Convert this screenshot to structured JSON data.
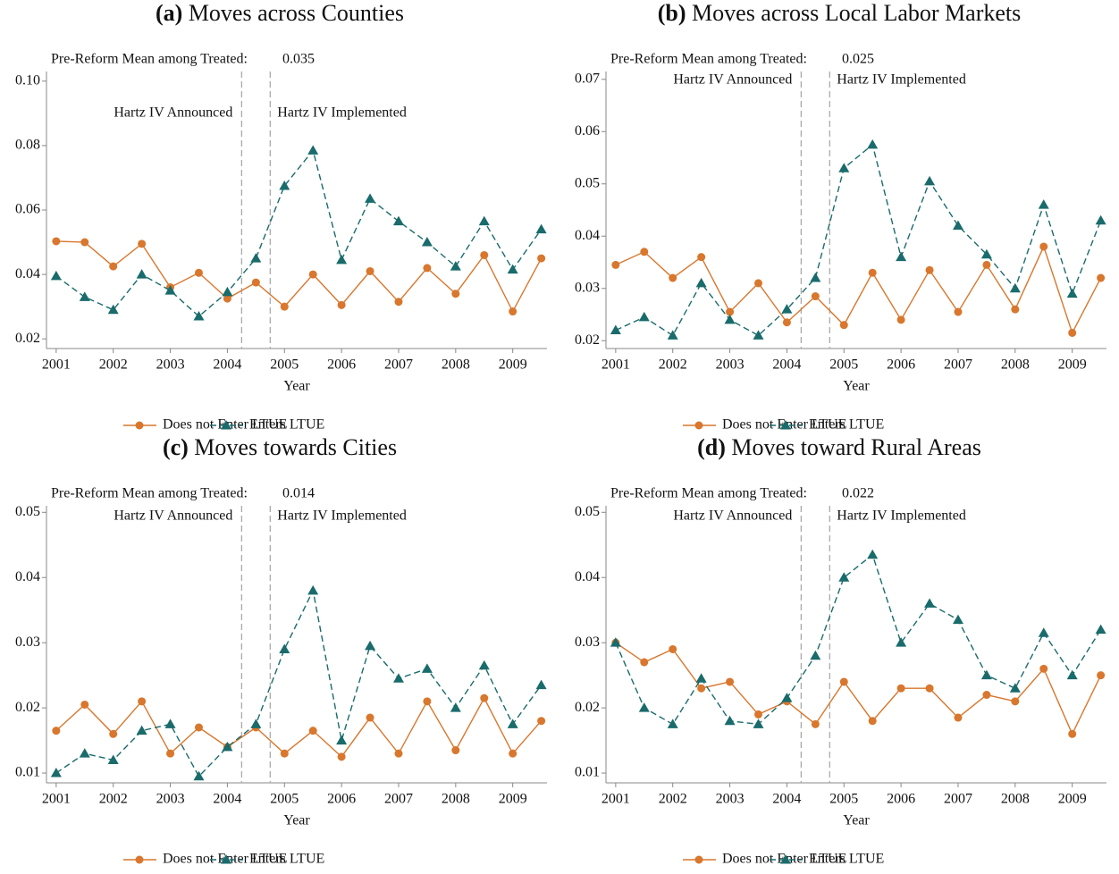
{
  "chart_data": [
    {
      "type": "line",
      "label": "(a)",
      "title": "Moves across Counties",
      "annotation_text": "Pre-Reform Mean among Treated:",
      "annotation_value": 0.035,
      "xlabel": "Year",
      "x": [
        2001,
        2001.5,
        2002,
        2002.5,
        2003,
        2003.5,
        2004,
        2004.5,
        2005,
        2005.5,
        2006,
        2006.5,
        2007,
        2007.5,
        2008,
        2008.5,
        2009,
        2009.5
      ],
      "xlim": [
        2000.83,
        2009.6
      ],
      "xticks": [
        2001,
        2002,
        2003,
        2004,
        2005,
        2006,
        2007,
        2008,
        2009
      ],
      "ylim": [
        0.017,
        0.103
      ],
      "yticks": [
        0.02,
        0.04,
        0.06,
        0.08,
        {
          "value": 0.1,
          "label": "0.10"
        }
      ],
      "vlines": [
        2004.25,
        2004.75
      ],
      "vline_labels": [
        "Hartz IV Announced",
        "Hartz IV Implemented"
      ],
      "series": [
        {
          "name": "Does not Enter LTUE",
          "color": "#d8772d",
          "values": [
            0.0503,
            0.05,
            0.0425,
            0.0495,
            0.036,
            0.0405,
            0.0325,
            0.0375,
            0.03,
            0.04,
            0.0305,
            0.041,
            0.0315,
            0.042,
            0.034,
            0.046,
            0.0285,
            0.045
          ]
        },
        {
          "name": "Enters LTUE",
          "color": "#1a6b6b",
          "values": [
            0.0395,
            0.033,
            0.029,
            0.04,
            0.035,
            0.027,
            0.0345,
            0.045,
            0.0675,
            0.0785,
            0.0445,
            0.0635,
            0.0565,
            0.05,
            0.0425,
            0.0565,
            0.0415,
            0.054
          ]
        }
      ]
    },
    {
      "type": "line",
      "label": "(b)",
      "title": "Moves across Local Labor Markets",
      "annotation_text": "Pre-Reform Mean among Treated:",
      "annotation_value": 0.025,
      "xlabel": "Year",
      "x": [
        2001,
        2001.5,
        2002,
        2002.5,
        2003,
        2003.5,
        2004,
        2004.5,
        2005,
        2005.5,
        2006,
        2006.5,
        2007,
        2007.5,
        2008,
        2008.5,
        2009,
        2009.5
      ],
      "xlim": [
        2000.83,
        2009.6
      ],
      "xticks": [
        2001,
        2002,
        2003,
        2004,
        2005,
        2006,
        2007,
        2008,
        2009
      ],
      "ylim": [
        0.0185,
        0.0715
      ],
      "yticks": [
        0.02,
        0.03,
        0.04,
        0.05,
        0.06,
        0.07
      ],
      "vlines": [
        2004.25,
        2004.75
      ],
      "vline_labels": [
        "Hartz IV Announced",
        "Hartz IV Implemented"
      ],
      "series": [
        {
          "name": "Does not Enter LTUE",
          "color": "#d8772d",
          "values": [
            0.0345,
            0.037,
            0.032,
            0.036,
            0.0255,
            0.031,
            0.0235,
            0.0285,
            0.023,
            0.033,
            0.024,
            0.0335,
            0.0255,
            0.0345,
            0.026,
            0.038,
            0.0215,
            0.032
          ]
        },
        {
          "name": "Enters LTUE",
          "color": "#1a6b6b",
          "values": [
            0.022,
            0.0245,
            0.021,
            0.031,
            0.024,
            0.021,
            0.026,
            0.032,
            0.053,
            0.0575,
            0.036,
            0.0505,
            0.042,
            0.0365,
            0.03,
            0.046,
            0.029,
            0.043
          ]
        }
      ]
    },
    {
      "type": "line",
      "label": "(c)",
      "title": "Moves towards Cities",
      "annotation_text": "Pre-Reform Mean among Treated:",
      "annotation_value": 0.014,
      "xlabel": "Year",
      "x": [
        2001,
        2001.5,
        2002,
        2002.5,
        2003,
        2003.5,
        2004,
        2004.5,
        2005,
        2005.5,
        2006,
        2006.5,
        2007,
        2007.5,
        2008,
        2008.5,
        2009,
        2009.5
      ],
      "xlim": [
        2000.83,
        2009.6
      ],
      "xticks": [
        2001,
        2002,
        2003,
        2004,
        2005,
        2006,
        2007,
        2008,
        2009
      ],
      "ylim": [
        0.0085,
        0.051
      ],
      "yticks": [
        0.01,
        0.02,
        0.03,
        0.04,
        0.05
      ],
      "vlines": [
        2004.25,
        2004.75
      ],
      "vline_labels": [
        "Hartz IV Announced",
        "Hartz IV Implemented"
      ],
      "series": [
        {
          "name": "Does not Enter LTUE",
          "color": "#d8772d",
          "values": [
            0.0165,
            0.0205,
            0.016,
            0.021,
            0.013,
            0.017,
            0.014,
            0.017,
            0.013,
            0.0165,
            0.0125,
            0.0185,
            0.013,
            0.021,
            0.0135,
            0.0215,
            0.013,
            0.018
          ]
        },
        {
          "name": "Enters LTUE",
          "color": "#1a6b6b",
          "values": [
            0.01,
            0.013,
            0.012,
            0.0165,
            0.0175,
            0.0095,
            0.014,
            0.0175,
            0.029,
            0.038,
            0.015,
            0.0295,
            0.0245,
            0.026,
            0.02,
            0.0265,
            0.0175,
            0.0235
          ]
        }
      ]
    },
    {
      "type": "line",
      "label": "(d)",
      "title": "Moves toward Rural Areas",
      "annotation_text": "Pre-Reform Mean among Treated:",
      "annotation_value": 0.022,
      "xlabel": "Year",
      "x": [
        2001,
        2001.5,
        2002,
        2002.5,
        2003,
        2003.5,
        2004,
        2004.5,
        2005,
        2005.5,
        2006,
        2006.5,
        2007,
        2007.5,
        2008,
        2008.5,
        2009,
        2009.5
      ],
      "xlim": [
        2000.83,
        2009.6
      ],
      "xticks": [
        2001,
        2002,
        2003,
        2004,
        2005,
        2006,
        2007,
        2008,
        2009
      ],
      "ylim": [
        0.0085,
        0.051
      ],
      "yticks": [
        0.01,
        0.02,
        0.03,
        0.04,
        0.05
      ],
      "vlines": [
        2004.25,
        2004.75
      ],
      "vline_labels": [
        "Hartz IV Announced",
        "Hartz IV Implemented"
      ],
      "series": [
        {
          "name": "Does not Enter LTUE",
          "color": "#d8772d",
          "values": [
            0.03,
            0.027,
            0.029,
            0.023,
            0.024,
            0.019,
            0.021,
            0.0175,
            0.024,
            0.018,
            0.023,
            0.023,
            0.0185,
            0.022,
            0.021,
            0.026,
            0.016,
            0.025
          ]
        },
        {
          "name": "Enters LTUE",
          "color": "#1a6b6b",
          "values": [
            0.03,
            0.02,
            0.0175,
            0.0245,
            0.018,
            0.0175,
            0.0215,
            0.028,
            0.04,
            0.0435,
            0.03,
            0.036,
            0.0335,
            0.025,
            0.023,
            0.0315,
            0.025,
            0.032
          ]
        }
      ]
    }
  ]
}
